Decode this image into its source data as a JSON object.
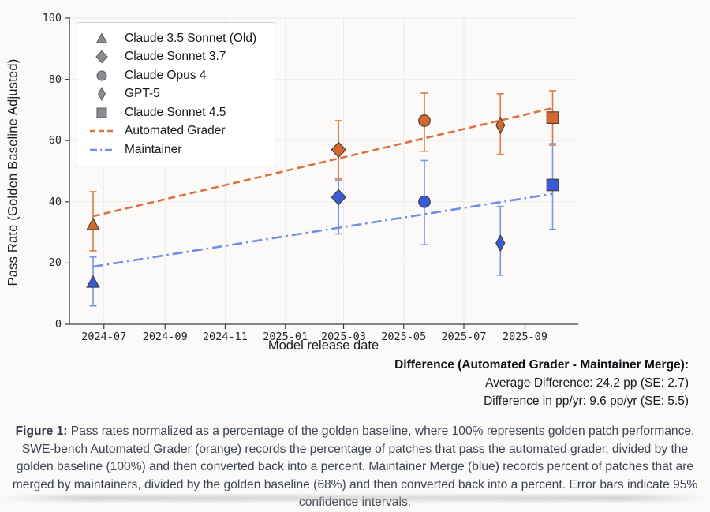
{
  "chart_data": {
    "type": "scatter",
    "xlabel": "Model release date",
    "ylabel": "Pass Rate (Golden Baseline Adjusted)",
    "ylim": [
      0,
      100
    ],
    "yticks": [
      0,
      20,
      40,
      60,
      80,
      100
    ],
    "xlim": [
      "2024-05-27",
      "2025-10-25"
    ],
    "xticks": [
      "2024-07",
      "2024-09",
      "2024-11",
      "2025-01",
      "2025-03",
      "2025-05",
      "2025-07",
      "2025-09"
    ],
    "grid": true,
    "legend_position": "upper left",
    "series_names": [
      "Automated Grader",
      "Maintainer"
    ],
    "models": [
      {
        "name": "Claude 3.5 Sonnet (Old)",
        "marker": "triangle",
        "date": "2024-06-20",
        "automated_grader": {
          "value": 32.5,
          "ci": [
            24.0,
            43.3
          ]
        },
        "maintainer": {
          "value": 13.7,
          "ci": [
            6.0,
            22.0
          ]
        }
      },
      {
        "name": "Claude Sonnet 3.7",
        "marker": "diamond",
        "date": "2025-02-24",
        "automated_grader": {
          "value": 57.0,
          "ci": [
            47.5,
            66.5
          ]
        },
        "maintainer": {
          "value": 41.5,
          "ci": [
            29.5,
            47.0
          ]
        }
      },
      {
        "name": "Claude Opus 4",
        "marker": "circle",
        "date": "2025-05-22",
        "automated_grader": {
          "value": 66.5,
          "ci": [
            56.5,
            75.5
          ]
        },
        "maintainer": {
          "value": 40.0,
          "ci": [
            26.0,
            53.5
          ]
        }
      },
      {
        "name": "GPT-5",
        "marker": "thindiamond",
        "date": "2025-08-07",
        "automated_grader": {
          "value": 65.0,
          "ci": [
            55.5,
            75.3
          ]
        },
        "maintainer": {
          "value": 26.5,
          "ci": [
            16.0,
            38.5
          ]
        }
      },
      {
        "name": "Claude Sonnet 4.5",
        "marker": "square",
        "date": "2025-09-29",
        "automated_grader": {
          "value": 67.5,
          "ci": [
            58.5,
            76.3
          ]
        },
        "maintainer": {
          "value": 45.5,
          "ci": [
            31.0,
            59.0
          ]
        }
      }
    ],
    "trend_lines": [
      {
        "name": "Automated Grader",
        "style": "dashed",
        "start": {
          "date": "2024-06-20",
          "value": 35.3
        },
        "end": {
          "date": "2025-09-29",
          "value": 70.6
        }
      },
      {
        "name": "Maintainer",
        "style": "dashdot",
        "start": {
          "date": "2024-06-20",
          "value": 18.8
        },
        "end": {
          "date": "2025-09-29",
          "value": 42.6
        }
      }
    ],
    "colors": {
      "automated_marker": "#d4672e",
      "automated_error": "#dd7a45",
      "automated_line": "#dd7240",
      "maintainer_marker": "#3a5bd6",
      "maintainer_error": "#7a95e6",
      "maintainer_line": "#6e8ce8",
      "marker_edge": "#3d3a38",
      "legend_marker": "#8b8b92",
      "legend_marker_edge": "#55555c",
      "grid": "#ebebeb",
      "spine": "#3c3c3c"
    }
  },
  "legend": {
    "items": [
      {
        "glyph": "triangle",
        "label": "Claude 3.5 Sonnet (Old)"
      },
      {
        "glyph": "diamond",
        "label": "Claude Sonnet 3.7"
      },
      {
        "glyph": "circle",
        "label": "Claude Opus 4"
      },
      {
        "glyph": "thindiamond",
        "label": "GPT-5"
      },
      {
        "glyph": "square",
        "label": "Claude Sonnet 4.5"
      },
      {
        "glyph": "dashed-line",
        "label": "Automated Grader"
      },
      {
        "glyph": "dashdot-line",
        "label": "Maintainer"
      }
    ]
  },
  "stats": {
    "title": "Difference (Automated Grader - Maintainer Merge):",
    "average": "Average Difference: 24.2 pp (SE: 2.7)",
    "per_year": "Difference in pp/yr: 9.6 pp/yr (SE: 5.5)"
  },
  "caption": {
    "label": "Figure 1:",
    "text": " Pass rates normalized as a percentage of the golden baseline, where 100% represents golden patch performance. SWE-bench Automated Grader (orange) records the percentage of patches that pass the automated grader, divided by the golden baseline (100%) and then converted back into a percent. Maintainer Merge (blue) records percent of patches that are merged by maintainers, divided by the golden baseline (68%) and then converted back into a percent. Error bars indicate 95% confidence intervals."
  }
}
